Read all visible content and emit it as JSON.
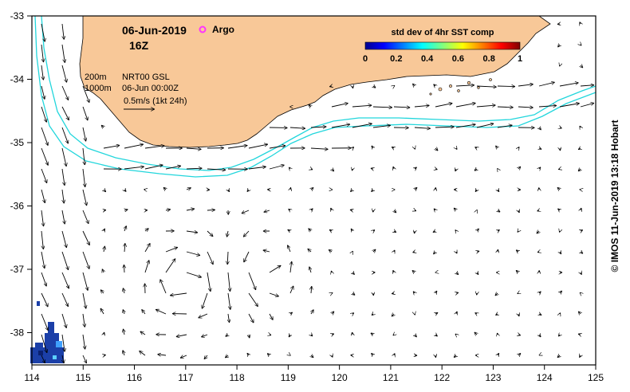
{
  "map": {
    "date": "06-Jun-2019",
    "hour": "16Z",
    "argo_label": "Argo",
    "legend": {
      "title": "std dev of 4hr SST comp",
      "ticks": [
        "0",
        "0.2",
        "0.4",
        "0.6",
        "0.8",
        "1"
      ]
    },
    "info": {
      "depth_200": "200m",
      "depth_1000": "1000m",
      "product": "NRT00 GSL",
      "analysis_time": "06-Jun 00:00Z",
      "scale_label": "0.5m/s (1kt 24h)"
    },
    "x_ticks": [
      "114",
      "115",
      "116",
      "117",
      "118",
      "119",
      "120",
      "121",
      "122",
      "123",
      "124",
      "125"
    ],
    "y_ticks": [
      "-33",
      "-34",
      "-35",
      "-36",
      "-37",
      "-38"
    ],
    "credit": "© IMOS 11-Jun-2019 13:18 Hobart",
    "colors": {
      "land": "#f8c898",
      "isobath": "#22d6dc",
      "argo_marker": "#ff33ff",
      "sst_speckle": "#1b3fa8"
    }
  }
}
